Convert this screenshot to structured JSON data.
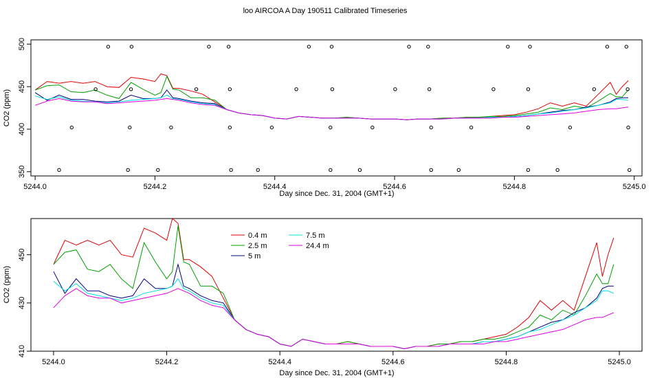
{
  "title": "loo AIRCOA A  Day 190511  Calibrated Timeseries",
  "chart_data": [
    {
      "type": "line",
      "name": "top-panel",
      "xlabel": "Day since Dec. 31, 2004 (GMT+1)",
      "ylabel": "CO2 (ppm)",
      "xlim": [
        5243.993,
        5245.013
      ],
      "ylim": [
        345,
        505
      ],
      "xticks": [
        5244.0,
        5244.2,
        5244.4,
        5244.6,
        5244.8,
        5245.0
      ],
      "xtick_labels": [
        "5244.0",
        "5244.2",
        "5244.4",
        "5244.6",
        "5244.8",
        "5245.0"
      ],
      "yticks": [
        350,
        400,
        450,
        500
      ],
      "ytick_labels": [
        "350",
        "400",
        "450",
        "500"
      ],
      "grid": false,
      "x": [
        5244.0,
        5244.02,
        5244.04,
        5244.06,
        5244.08,
        5244.1,
        5244.12,
        5244.14,
        5244.16,
        5244.18,
        5244.2,
        5244.21,
        5244.22,
        5244.23,
        5244.24,
        5244.26,
        5244.28,
        5244.3,
        5244.32,
        5244.34,
        5244.36,
        5244.38,
        5244.4,
        5244.42,
        5244.44,
        5244.46,
        5244.48,
        5244.5,
        5244.52,
        5244.54,
        5244.56,
        5244.58,
        5244.6,
        5244.62,
        5244.64,
        5244.66,
        5244.68,
        5244.7,
        5244.72,
        5244.74,
        5244.76,
        5244.78,
        5244.8,
        5244.82,
        5244.84,
        5244.86,
        5244.88,
        5244.9,
        5244.92,
        5244.94,
        5244.96,
        5244.97,
        5244.98,
        5244.99
      ],
      "series": [
        {
          "color": "#e00000",
          "values": [
            446,
            456,
            454,
            456,
            454,
            456,
            450,
            449,
            461,
            459,
            456,
            465,
            463,
            448,
            448,
            445,
            441,
            432,
            423,
            419,
            417,
            416,
            413,
            412,
            415,
            414,
            413,
            413,
            414,
            413,
            412,
            412,
            412,
            411,
            412,
            412,
            413,
            413,
            414,
            414,
            415,
            416,
            417,
            420,
            424,
            431,
            427,
            431,
            427,
            441,
            455,
            441,
            450,
            457
          ]
        },
        {
          "color": "#00a000",
          "values": [
            446,
            451,
            452,
            444,
            443,
            446,
            440,
            436,
            455,
            447,
            440,
            443,
            462,
            447,
            446,
            437,
            437,
            434,
            423,
            419,
            417,
            416,
            413,
            412,
            415,
            414,
            413,
            413,
            414,
            413,
            412,
            412,
            412,
            411,
            412,
            412,
            413,
            413,
            414,
            414,
            415,
            415,
            416,
            418,
            420,
            425,
            423,
            427,
            425,
            433,
            442,
            438,
            438,
            446
          ]
        },
        {
          "color": "#000080",
          "values": [
            443,
            434,
            440,
            435,
            435,
            433,
            432,
            433,
            440,
            436,
            436,
            437,
            446,
            437,
            436,
            433,
            431,
            430,
            423,
            419,
            417,
            416,
            413,
            412,
            415,
            414,
            413,
            413,
            413,
            413,
            412,
            412,
            412,
            411,
            412,
            412,
            412,
            413,
            413,
            413,
            414,
            414,
            415,
            416,
            418,
            420,
            422,
            423,
            426,
            428,
            432,
            436,
            437,
            437
          ]
        },
        {
          "color": "#00e0e0",
          "values": [
            439,
            435,
            438,
            434,
            433,
            432,
            431,
            432,
            434,
            435,
            436,
            437,
            440,
            436,
            435,
            432,
            430,
            429,
            423,
            419,
            417,
            416,
            413,
            412,
            415,
            414,
            413,
            413,
            413,
            413,
            412,
            412,
            412,
            411,
            412,
            412,
            412,
            413,
            413,
            413,
            414,
            414,
            415,
            416,
            418,
            419,
            421,
            423,
            425,
            428,
            431,
            435,
            435,
            434
          ]
        },
        {
          "color": "#e000e0",
          "values": [
            428,
            433,
            436,
            433,
            432,
            432,
            430,
            431,
            432,
            433,
            434,
            435,
            436,
            435,
            434,
            431,
            429,
            428,
            423,
            419,
            417,
            416,
            413,
            412,
            415,
            414,
            413,
            413,
            413,
            413,
            412,
            412,
            412,
            411,
            412,
            412,
            412,
            413,
            413,
            413,
            413,
            414,
            414,
            415,
            416,
            417,
            418,
            419,
            421,
            423,
            424,
            424,
            425,
            426
          ]
        }
      ],
      "markers": [
        [
          5244.04,
          352
        ],
        [
          5244.155,
          352
        ],
        [
          5244.205,
          352
        ],
        [
          5244.327,
          352
        ],
        [
          5244.372,
          352
        ],
        [
          5244.493,
          352
        ],
        [
          5244.542,
          352
        ],
        [
          5244.661,
          352
        ],
        [
          5244.707,
          352
        ],
        [
          5244.823,
          352
        ],
        [
          5244.872,
          352
        ],
        [
          5244.992,
          352
        ],
        [
          5244.061,
          402
        ],
        [
          5244.158,
          402
        ],
        [
          5244.227,
          402
        ],
        [
          5244.325,
          402
        ],
        [
          5244.395,
          402
        ],
        [
          5244.493,
          402
        ],
        [
          5244.563,
          402
        ],
        [
          5244.661,
          402
        ],
        [
          5244.728,
          402
        ],
        [
          5244.823,
          402
        ],
        [
          5244.893,
          402
        ],
        [
          5244.99,
          402
        ],
        [
          5244.101,
          447
        ],
        [
          5244.16,
          447
        ],
        [
          5244.269,
          447
        ],
        [
          5244.325,
          447
        ],
        [
          5244.436,
          447
        ],
        [
          5244.496,
          447
        ],
        [
          5244.601,
          447
        ],
        [
          5244.658,
          447
        ],
        [
          5244.765,
          447
        ],
        [
          5244.823,
          447
        ],
        [
          5244.933,
          447
        ],
        [
          5244.989,
          447
        ],
        [
          5244.122,
          497
        ],
        [
          5244.161,
          497
        ],
        [
          5244.29,
          497
        ],
        [
          5244.323,
          497
        ],
        [
          5244.457,
          497
        ],
        [
          5244.495,
          497
        ],
        [
          5244.624,
          497
        ],
        [
          5244.656,
          497
        ],
        [
          5244.789,
          497
        ],
        [
          5244.826,
          497
        ],
        [
          5244.955,
          497
        ],
        [
          5244.987,
          497
        ]
      ]
    },
    {
      "type": "line",
      "name": "bottom-panel",
      "xlabel": "Day since Dec. 31, 2004 (GMT+1)",
      "ylabel": "CO2 (ppm)",
      "xlim": [
        5243.96,
        5245.04
      ],
      "ylim": [
        410,
        465
      ],
      "xticks": [
        5244.0,
        5244.2,
        5244.4,
        5244.6,
        5244.8,
        5245.0
      ],
      "xtick_labels": [
        "5244.0",
        "5244.2",
        "5244.4",
        "5244.6",
        "5244.8",
        "5245.0"
      ],
      "yticks": [
        410,
        430,
        450
      ],
      "ytick_labels": [
        "410",
        "430",
        "450"
      ],
      "grid": false,
      "legend_position": "top-center",
      "legend": [
        {
          "label": "0.4 m",
          "color": "#e00000"
        },
        {
          "label": "2.5 m",
          "color": "#00a000"
        },
        {
          "label": "5 m",
          "color": "#000080"
        },
        {
          "label": "7.5 m",
          "color": "#00e0e0"
        },
        {
          "label": "24.4 m",
          "color": "#e000e0"
        }
      ]
    }
  ]
}
